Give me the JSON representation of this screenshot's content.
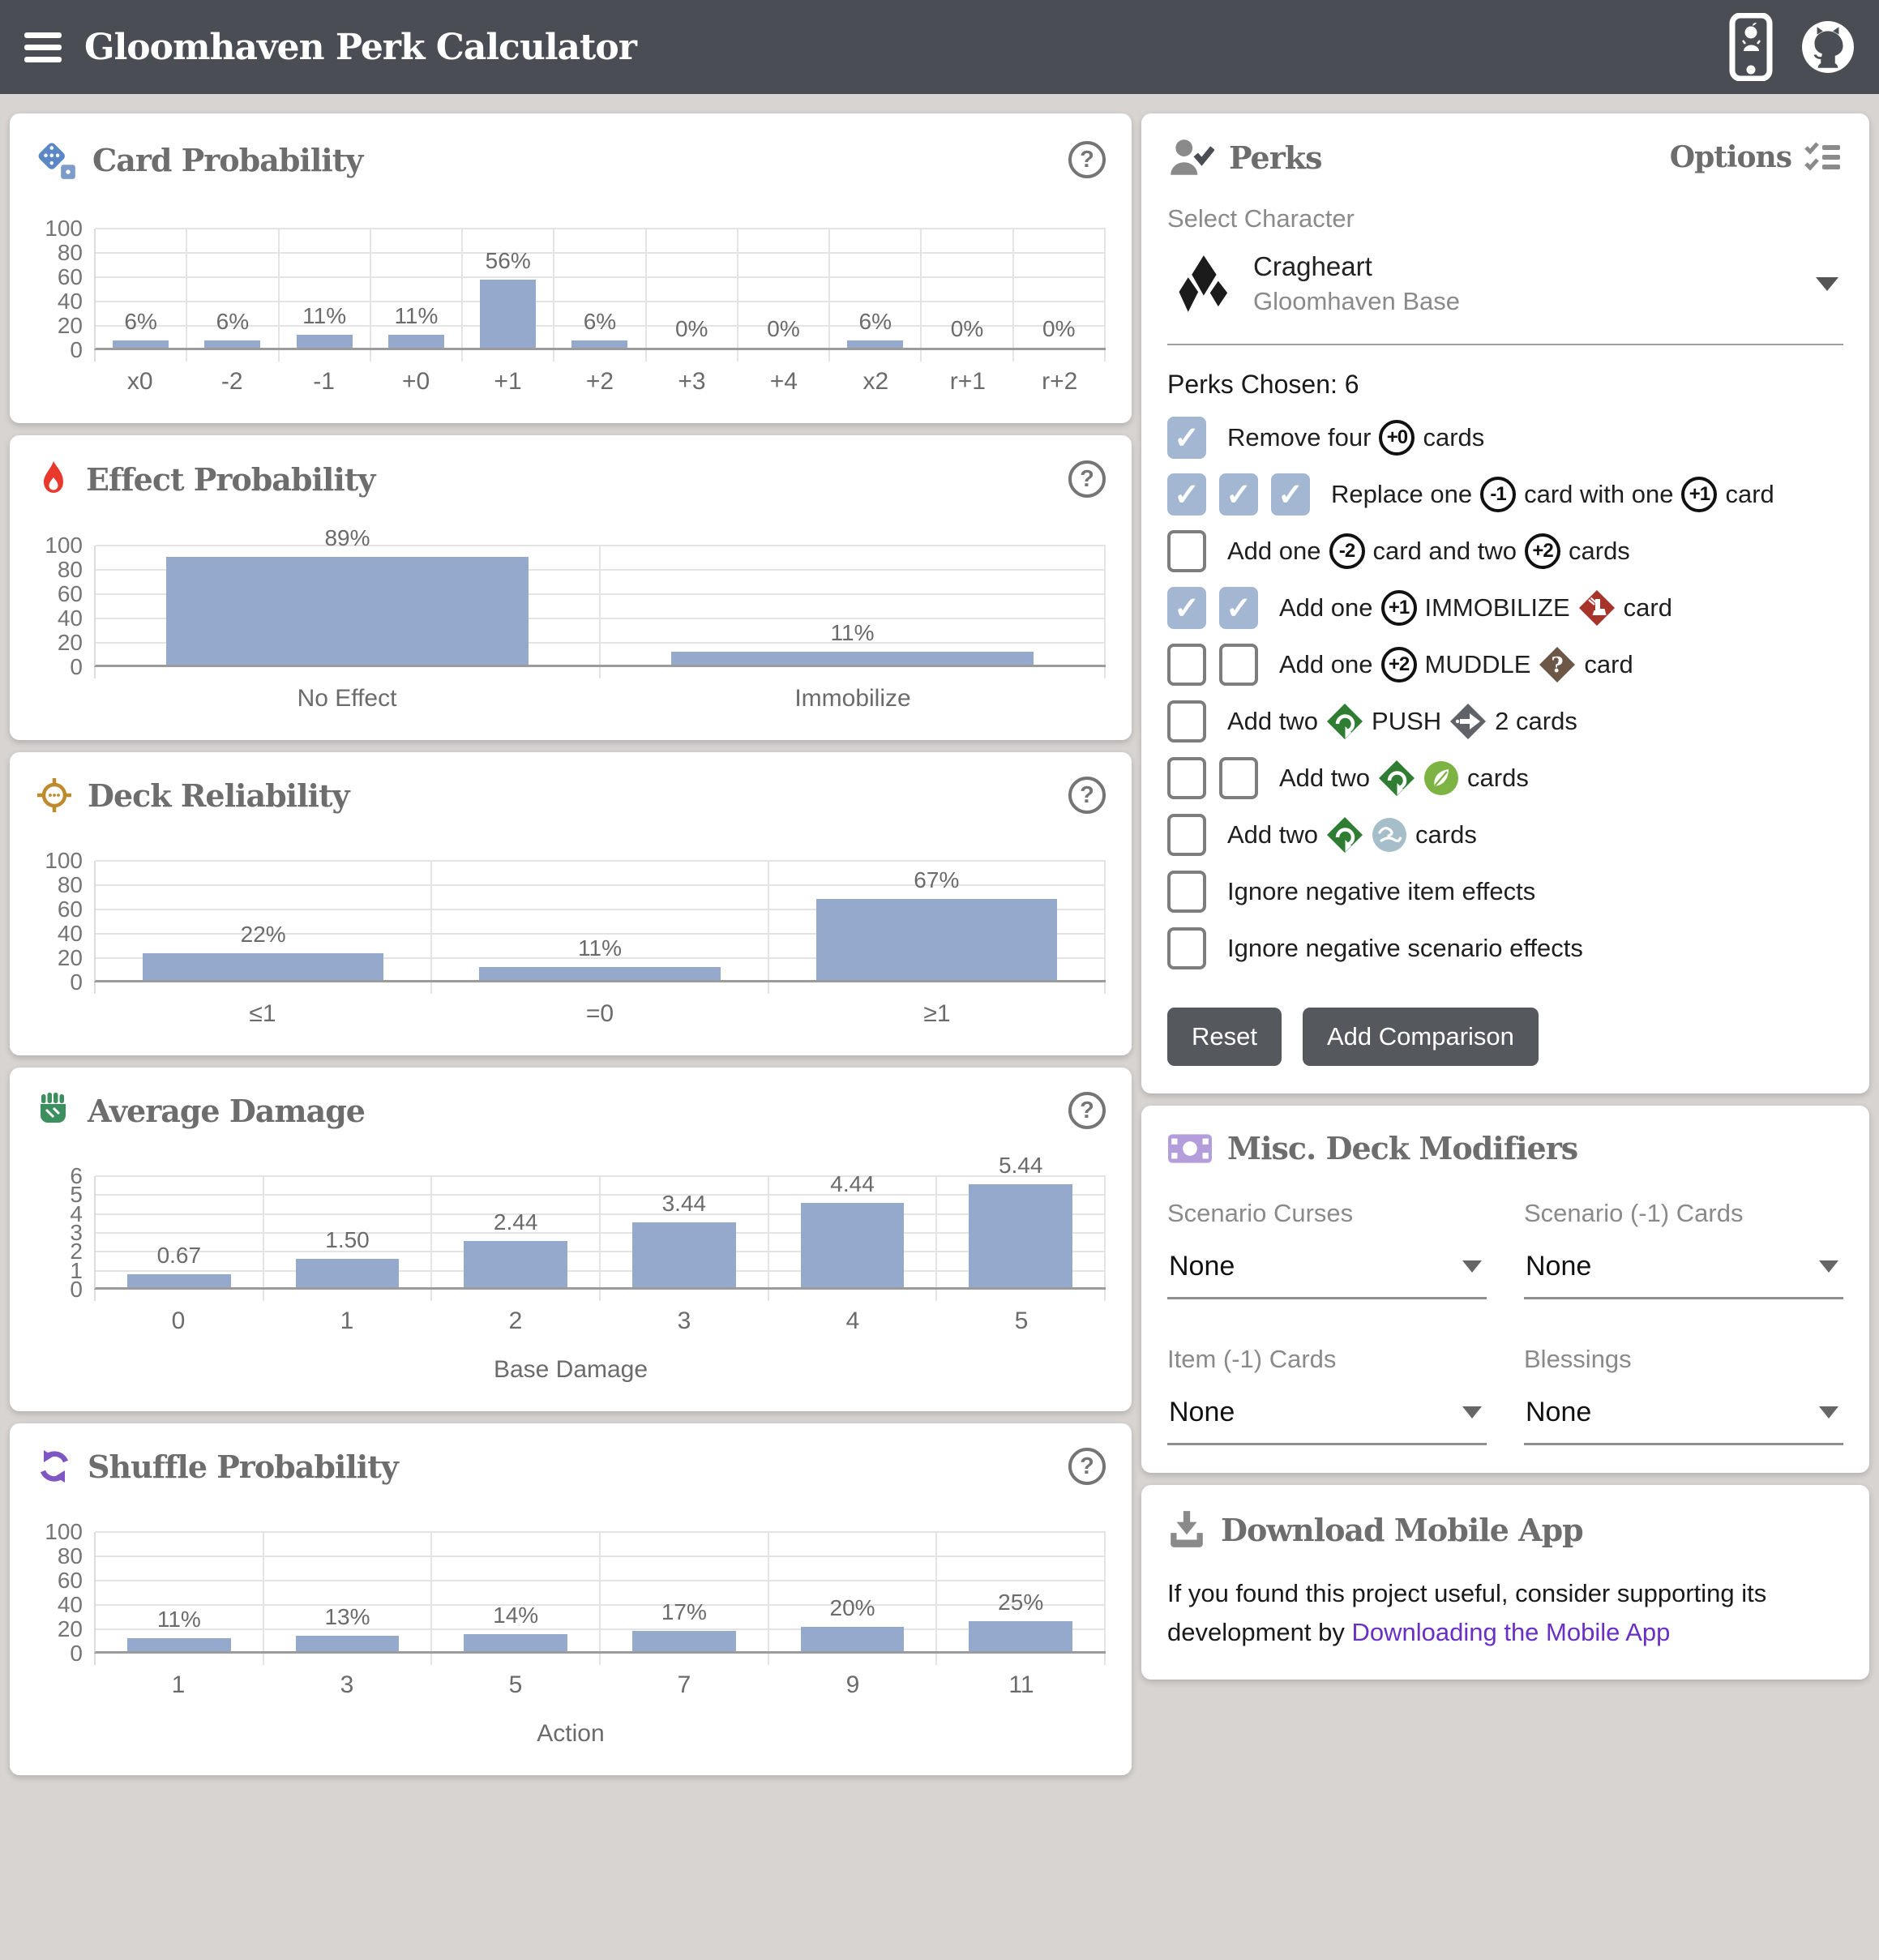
{
  "header": {
    "title": "Gloomhaven Perk Calculator"
  },
  "icons": {
    "help_glyph": "?"
  },
  "chart_data": [
    {
      "type": "bar",
      "id": "card-probability",
      "title": "Card Probability",
      "icon": "dice-icon",
      "categories": [
        "x0",
        "-2",
        "-1",
        "+0",
        "+1",
        "+2",
        "+3",
        "+4",
        "x2",
        "r+1",
        "r+2"
      ],
      "values": [
        6,
        6,
        11,
        11,
        56,
        6,
        0,
        0,
        6,
        0,
        0
      ],
      "labels": [
        "6%",
        "6%",
        "11%",
        "11%",
        "56%",
        "6%",
        "0%",
        "0%",
        "6%",
        "0%",
        "0%"
      ],
      "xlabel": "",
      "ylim": [
        0,
        100
      ],
      "yticks": [
        0,
        20,
        40,
        60,
        80,
        100
      ],
      "grid": true,
      "legend": "none"
    },
    {
      "type": "bar",
      "id": "effect-probability",
      "title": "Effect Probability",
      "icon": "flame-icon",
      "categories": [
        "No Effect",
        "Immobilize"
      ],
      "values": [
        89,
        11
      ],
      "labels": [
        "89%",
        "11%"
      ],
      "xlabel": "",
      "ylim": [
        0,
        100
      ],
      "yticks": [
        0,
        20,
        40,
        60,
        80,
        100
      ],
      "grid": true,
      "legend": "none"
    },
    {
      "type": "bar",
      "id": "deck-reliability",
      "title": "Deck Reliability",
      "icon": "target-icon",
      "categories": [
        "≤1",
        "=0",
        "≥1"
      ],
      "values": [
        22,
        11,
        67
      ],
      "labels": [
        "22%",
        "11%",
        "67%"
      ],
      "xlabel": "",
      "ylim": [
        0,
        100
      ],
      "yticks": [
        0,
        20,
        40,
        60,
        80,
        100
      ],
      "grid": true,
      "legend": "none"
    },
    {
      "type": "bar",
      "id": "average-damage",
      "title": "Average Damage",
      "icon": "fist-icon",
      "categories": [
        "0",
        "1",
        "2",
        "3",
        "4",
        "5"
      ],
      "values": [
        0.67,
        1.5,
        2.44,
        3.44,
        4.44,
        5.44
      ],
      "labels": [
        "0.67",
        "1.50",
        "2.44",
        "3.44",
        "4.44",
        "5.44"
      ],
      "xlabel": "Base Damage",
      "ylim": [
        0,
        6
      ],
      "yticks": [
        0,
        1,
        2,
        3,
        4,
        5,
        6
      ],
      "grid": true,
      "legend": "none"
    },
    {
      "type": "bar",
      "id": "shuffle-probability",
      "title": "Shuffle Probability",
      "icon": "shuffle-icon",
      "categories": [
        "1",
        "3",
        "5",
        "7",
        "9",
        "11"
      ],
      "values": [
        11,
        13,
        14,
        17,
        20,
        25
      ],
      "labels": [
        "11%",
        "13%",
        "14%",
        "17%",
        "20%",
        "25%"
      ],
      "xlabel": "Action",
      "ylim": [
        0,
        100
      ],
      "yticks": [
        0,
        20,
        40,
        60,
        80,
        100
      ],
      "grid": true,
      "legend": "none"
    }
  ],
  "perks": {
    "title": "Perks",
    "options_label": "Options",
    "select_character_label": "Select Character",
    "character": {
      "name": "Cragheart",
      "edition": "Gloomhaven Base"
    },
    "chosen_label": "Perks Chosen: 6",
    "reset_label": "Reset",
    "add_comparison_label": "Add Comparison",
    "rows": [
      {
        "checks": [
          true
        ],
        "parts": [
          {
            "t": "text",
            "v": "Remove four"
          },
          {
            "t": "token",
            "v": "+0"
          },
          {
            "t": "text",
            "v": "cards"
          }
        ]
      },
      {
        "checks": [
          true,
          true,
          true
        ],
        "parts": [
          {
            "t": "text",
            "v": "Replace one"
          },
          {
            "t": "token",
            "v": "-1"
          },
          {
            "t": "text",
            "v": "card with one"
          },
          {
            "t": "token",
            "v": "+1"
          },
          {
            "t": "text",
            "v": "card"
          }
        ]
      },
      {
        "checks": [
          false
        ],
        "parts": [
          {
            "t": "text",
            "v": "Add one"
          },
          {
            "t": "token",
            "v": "-2"
          },
          {
            "t": "text",
            "v": "card and two"
          },
          {
            "t": "token",
            "v": "+2"
          },
          {
            "t": "text",
            "v": "cards"
          }
        ]
      },
      {
        "checks": [
          true,
          true
        ],
        "parts": [
          {
            "t": "text",
            "v": "Add one"
          },
          {
            "t": "token",
            "v": "+1"
          },
          {
            "t": "text",
            "v": "IMMOBILIZE"
          },
          {
            "t": "icon",
            "v": "immobilize-icon"
          },
          {
            "t": "text",
            "v": "card"
          }
        ]
      },
      {
        "checks": [
          false,
          false
        ],
        "parts": [
          {
            "t": "text",
            "v": "Add one"
          },
          {
            "t": "token",
            "v": "+2"
          },
          {
            "t": "text",
            "v": "MUDDLE"
          },
          {
            "t": "icon",
            "v": "muddle-icon"
          },
          {
            "t": "text",
            "v": "card"
          }
        ]
      },
      {
        "checks": [
          false
        ],
        "parts": [
          {
            "t": "text",
            "v": "Add two"
          },
          {
            "t": "icon",
            "v": "rolling-icon"
          },
          {
            "t": "text",
            "v": "PUSH"
          },
          {
            "t": "icon",
            "v": "push-icon"
          },
          {
            "t": "text",
            "v": "2 cards"
          }
        ]
      },
      {
        "checks": [
          false,
          false
        ],
        "parts": [
          {
            "t": "text",
            "v": "Add two"
          },
          {
            "t": "icon",
            "v": "rolling-icon"
          },
          {
            "t": "icon",
            "v": "earth-icon"
          },
          {
            "t": "text",
            "v": "cards"
          }
        ]
      },
      {
        "checks": [
          false
        ],
        "parts": [
          {
            "t": "text",
            "v": "Add two"
          },
          {
            "t": "icon",
            "v": "rolling-icon"
          },
          {
            "t": "icon",
            "v": "air-icon"
          },
          {
            "t": "text",
            "v": "cards"
          }
        ]
      },
      {
        "checks": [
          false
        ],
        "parts": [
          {
            "t": "text",
            "v": "Ignore negative item effects"
          }
        ]
      },
      {
        "checks": [
          false
        ],
        "parts": [
          {
            "t": "text",
            "v": "Ignore negative scenario effects"
          }
        ]
      }
    ]
  },
  "misc": {
    "title": "Misc. Deck Modifiers",
    "selects": [
      {
        "label": "Scenario Curses",
        "value": "None"
      },
      {
        "label": "Scenario (-1) Cards",
        "value": "None"
      },
      {
        "label": "Item (-1) Cards",
        "value": "None"
      },
      {
        "label": "Blessings",
        "value": "None"
      }
    ]
  },
  "download": {
    "title": "Download Mobile App",
    "text_before_link": "If you found this project useful, consider supporting its development by ",
    "link_text": "Downloading the Mobile App"
  },
  "colors": {
    "bar_blue": "#94a9cc",
    "header": "#4a4e54",
    "checked_checkbox": "#a3b7d3",
    "link_purple": "#6930c3",
    "immobilize_red": "#a8332b",
    "muddle_brown": "#6d5747",
    "rolling_green": "#2e7d32",
    "push_gray": "#5f6368",
    "earth_green": "#7cb342",
    "air_blue": "#a5bec9"
  }
}
